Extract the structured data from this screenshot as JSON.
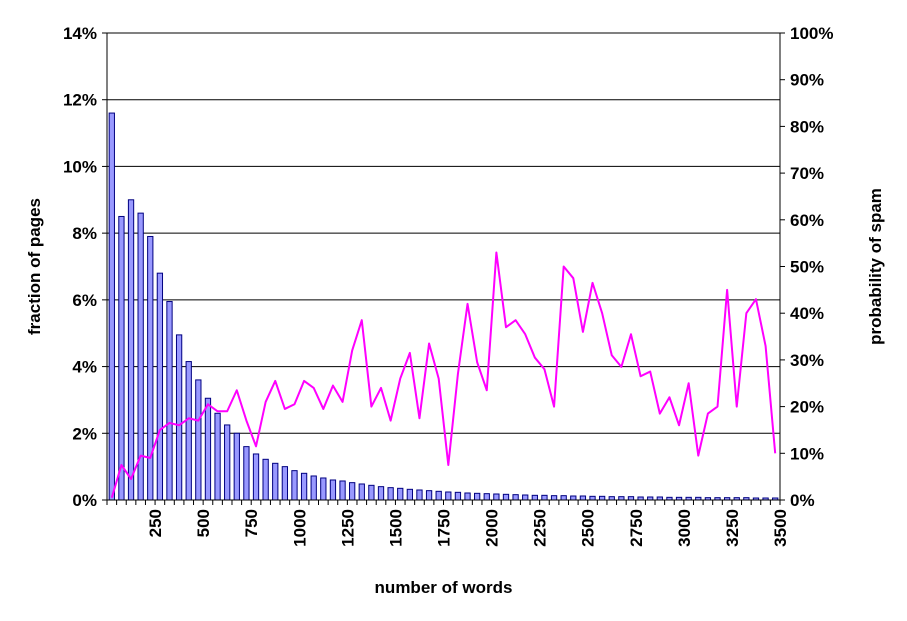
{
  "chart_data": {
    "type": "bar+line",
    "xlabel": "number of words",
    "ylabel_left": "fraction of pages",
    "ylabel_right": "probability of spam",
    "x_bin_width": 50,
    "x_ticks": [
      "250",
      "500",
      "750",
      "1000",
      "1250",
      "1500",
      "1750",
      "2000",
      "2250",
      "2500",
      "2750",
      "3000",
      "3250",
      "3500"
    ],
    "y_left_ticks": [
      "0%",
      "2%",
      "4%",
      "6%",
      "8%",
      "10%",
      "12%",
      "14%"
    ],
    "y_right_ticks": [
      "0%",
      "10%",
      "20%",
      "30%",
      "40%",
      "50%",
      "60%",
      "70%",
      "80%",
      "90%",
      "100%"
    ],
    "ylim_left": [
      0,
      14
    ],
    "ylim_right": [
      0,
      100
    ],
    "grid": true,
    "colors": {
      "bars": "#9999ff",
      "bar_edge": "#000080",
      "line": "#ff00ff"
    },
    "series": [
      {
        "type": "bar",
        "axis": "left",
        "unit": "percent of pages",
        "values": [
          11.6,
          8.5,
          9.0,
          8.6,
          7.9,
          6.8,
          5.95,
          4.95,
          4.15,
          3.6,
          3.05,
          2.6,
          2.25,
          2.0,
          1.6,
          1.38,
          1.22,
          1.1,
          1.0,
          0.88,
          0.8,
          0.72,
          0.66,
          0.6,
          0.57,
          0.52,
          0.48,
          0.44,
          0.4,
          0.37,
          0.35,
          0.32,
          0.3,
          0.28,
          0.26,
          0.24,
          0.23,
          0.21,
          0.2,
          0.19,
          0.18,
          0.17,
          0.16,
          0.15,
          0.14,
          0.14,
          0.13,
          0.13,
          0.12,
          0.12,
          0.11,
          0.11,
          0.1,
          0.1,
          0.1,
          0.09,
          0.09,
          0.09,
          0.08,
          0.08,
          0.08,
          0.08,
          0.07,
          0.07,
          0.07,
          0.07,
          0.07,
          0.06,
          0.06,
          0.06
        ]
      },
      {
        "type": "line",
        "axis": "right",
        "unit": "percent probability of spam",
        "values": [
          0.5,
          7.5,
          4.5,
          9.5,
          9.0,
          15.0,
          16.5,
          16.0,
          17.5,
          17.0,
          20.5,
          19.0,
          19.0,
          23.5,
          17.0,
          11.5,
          21.0,
          25.5,
          19.5,
          20.5,
          25.5,
          24.0,
          19.5,
          24.5,
          21.0,
          32.0,
          38.5,
          20.0,
          24.0,
          17.0,
          26.0,
          31.5,
          17.5,
          33.5,
          26.0,
          7.5,
          27.0,
          42.0,
          29.5,
          23.5,
          53.0,
          37.0,
          38.5,
          35.5,
          30.5,
          28.0,
          20.0,
          50.0,
          47.5,
          36.0,
          46.5,
          40.0,
          31.0,
          28.5,
          35.5,
          26.5,
          27.5,
          18.5,
          22.0,
          16.0,
          25.0,
          9.5,
          18.5,
          20.0,
          45.0,
          20.0,
          40.0,
          43.0,
          33.0,
          10.0
        ]
      }
    ]
  }
}
